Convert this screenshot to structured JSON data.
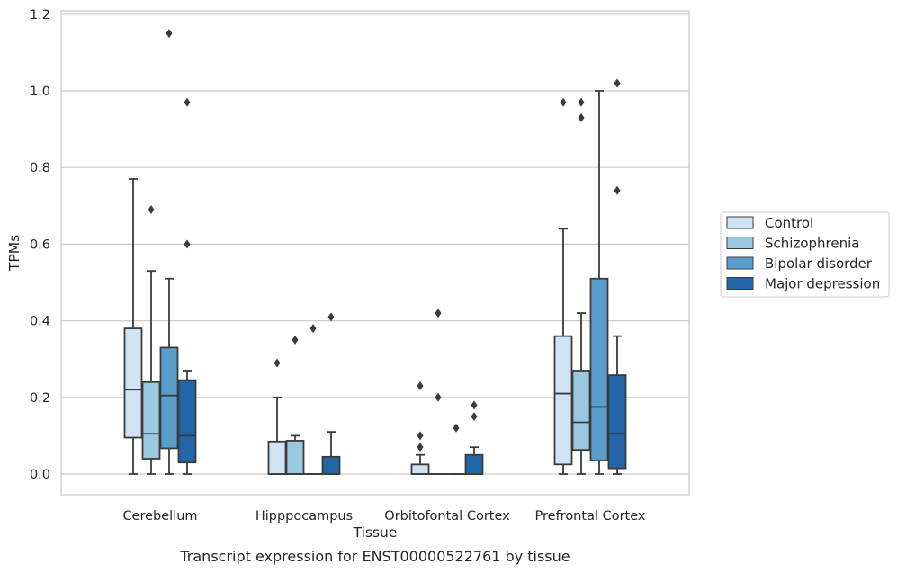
{
  "chart_data": {
    "type": "box",
    "xlabel": "Tissue",
    "ylabel": "TPMs",
    "ylim": [
      -0.055,
      1.21
    ],
    "yticks": [
      0.0,
      0.2,
      0.4,
      0.6,
      0.8,
      1.0,
      1.2
    ],
    "grid": "horizontal",
    "legend_position": "right",
    "categories": [
      "Cerebellum",
      "Hipppocampus",
      "Orbitofontal Cortex",
      "Prefrontal Cortex"
    ],
    "series": [
      {
        "name": "Control",
        "color": "#d2e3f3",
        "boxes": [
          {
            "whislo": 0.0,
            "q1": 0.095,
            "med": 0.22,
            "q3": 0.38,
            "whishi": 0.77,
            "fliers": []
          },
          {
            "whislo": 0.0,
            "q1": 0.0,
            "med": 0.0,
            "q3": 0.085,
            "whishi": 0.2,
            "fliers": [
              0.29
            ]
          },
          {
            "whislo": 0.0,
            "q1": 0.0,
            "med": 0.0,
            "q3": 0.025,
            "whishi": 0.05,
            "fliers": [
              0.07,
              0.1,
              0.23
            ]
          },
          {
            "whislo": 0.0,
            "q1": 0.025,
            "med": 0.21,
            "q3": 0.36,
            "whishi": 0.64,
            "fliers": [
              0.97
            ]
          }
        ]
      },
      {
        "name": "Schizophrenia",
        "color": "#9ac8e0",
        "boxes": [
          {
            "whislo": 0.0,
            "q1": 0.04,
            "med": 0.105,
            "q3": 0.24,
            "whishi": 0.53,
            "fliers": [
              0.69
            ]
          },
          {
            "whislo": 0.0,
            "q1": 0.0,
            "med": 0.0,
            "q3": 0.087,
            "whishi": 0.1,
            "fliers": [
              0.35
            ]
          },
          {
            "whislo": 0.0,
            "q1": 0.0,
            "med": 0.0,
            "q3": 0.0,
            "whishi": 0.0,
            "fliers": [
              0.2,
              0.42
            ]
          },
          {
            "whislo": 0.0,
            "q1": 0.063,
            "med": 0.135,
            "q3": 0.27,
            "whishi": 0.42,
            "fliers": [
              0.93,
              0.97
            ]
          }
        ]
      },
      {
        "name": "Bipolar disorder",
        "color": "#5a9fcb",
        "boxes": [
          {
            "whislo": 0.0,
            "q1": 0.067,
            "med": 0.205,
            "q3": 0.33,
            "whishi": 0.51,
            "fliers": [
              1.15
            ]
          },
          {
            "whislo": 0.0,
            "q1": 0.0,
            "med": 0.0,
            "q3": 0.0,
            "whishi": 0.0,
            "fliers": [
              0.38
            ]
          },
          {
            "whislo": 0.0,
            "q1": 0.0,
            "med": 0.0,
            "q3": 0.0,
            "whishi": 0.0,
            "fliers": [
              0.12
            ]
          },
          {
            "whislo": 0.0,
            "q1": 0.035,
            "med": 0.175,
            "q3": 0.51,
            "whishi": 1.0,
            "fliers": []
          }
        ]
      },
      {
        "name": "Major depression",
        "color": "#2366a8",
        "boxes": [
          {
            "whislo": 0.0,
            "q1": 0.03,
            "med": 0.1,
            "q3": 0.245,
            "whishi": 0.27,
            "fliers": [
              0.6,
              0.97
            ]
          },
          {
            "whislo": 0.0,
            "q1": 0.0,
            "med": 0.0,
            "q3": 0.045,
            "whishi": 0.11,
            "fliers": [
              0.41
            ]
          },
          {
            "whislo": 0.0,
            "q1": 0.0,
            "med": 0.0,
            "q3": 0.05,
            "whishi": 0.07,
            "fliers": [
              0.15,
              0.18
            ]
          },
          {
            "whislo": 0.0,
            "q1": 0.015,
            "med": 0.105,
            "q3": 0.258,
            "whishi": 0.36,
            "fliers": [
              0.74,
              1.02
            ]
          }
        ]
      }
    ]
  },
  "caption": "Transcript expression for ENST00000522761 by tissue",
  "colors": {
    "line": "#3b3b3b",
    "grid": "#cccccc",
    "frame": "#cccccc"
  }
}
